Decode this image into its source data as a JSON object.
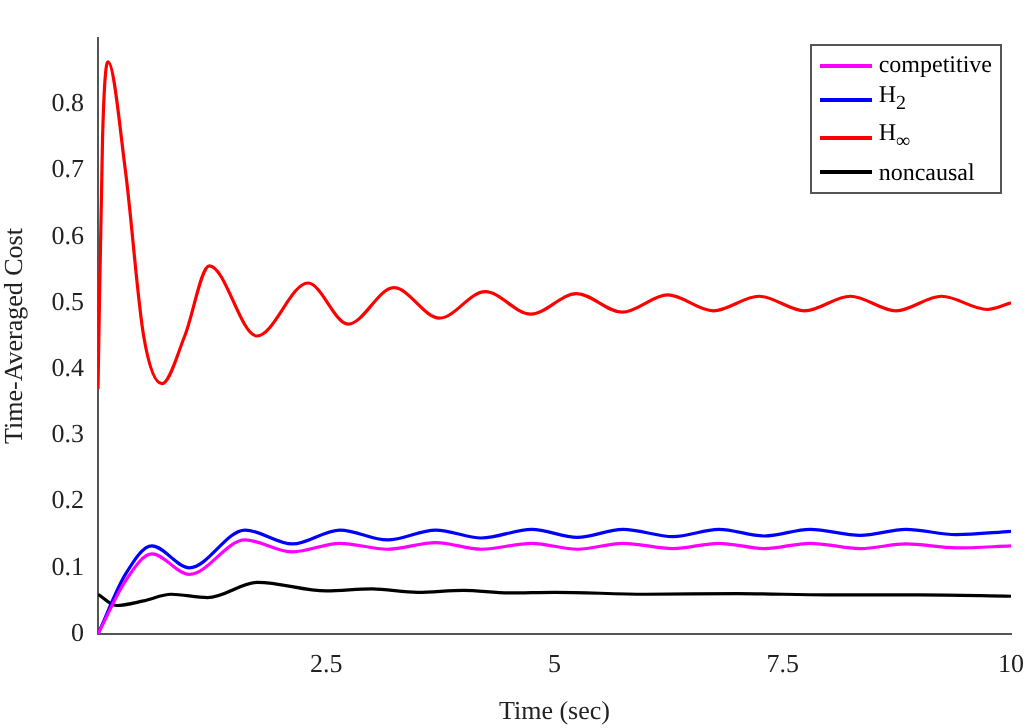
{
  "chart_data": {
    "type": "line",
    "xlabel": "Time (sec)",
    "ylabel": "Time-Averaged Cost",
    "xlim": [
      0,
      10
    ],
    "ylim": [
      0,
      0.9
    ],
    "xticks": [
      2.5,
      5,
      7.5,
      10
    ],
    "yticks": [
      0,
      0.1,
      0.2,
      0.3,
      0.4,
      0.5,
      0.6,
      0.7,
      0.8
    ],
    "grid": false,
    "legend": "top right",
    "marker": "none",
    "line_style": "solid",
    "series": [
      {
        "name": "competitive",
        "color": "#ff00ff",
        "x": [
          0,
          0.3,
          0.59,
          1.0,
          1.61,
          2.13,
          2.65,
          3.17,
          3.7,
          4.2,
          4.75,
          5.25,
          5.75,
          6.3,
          6.8,
          7.3,
          7.8,
          8.35,
          8.85,
          9.4,
          10
        ],
        "values": [
          0,
          0.08,
          0.121,
          0.09,
          0.142,
          0.124,
          0.137,
          0.128,
          0.138,
          0.128,
          0.137,
          0.128,
          0.137,
          0.129,
          0.137,
          0.129,
          0.137,
          0.129,
          0.136,
          0.13,
          0.133
        ]
      },
      {
        "name": "H$_{2}$",
        "color": "#0000ff",
        "x": [
          0,
          0.3,
          0.59,
          1.0,
          1.61,
          2.13,
          2.65,
          3.17,
          3.7,
          4.2,
          4.75,
          5.25,
          5.75,
          6.3,
          6.8,
          7.3,
          7.8,
          8.35,
          8.85,
          9.4,
          10
        ],
        "values": [
          0,
          0.09,
          0.133,
          0.1,
          0.157,
          0.136,
          0.157,
          0.142,
          0.157,
          0.145,
          0.158,
          0.146,
          0.158,
          0.147,
          0.158,
          0.148,
          0.158,
          0.149,
          0.158,
          0.15,
          0.155
        ]
      },
      {
        "name": "H$_{∞}$",
        "color": "#ff0000",
        "x": [
          0,
          0.05,
          0.11,
          0.3,
          0.5,
          0.7,
          0.95,
          1.22,
          1.74,
          2.3,
          2.74,
          3.24,
          3.74,
          4.24,
          4.74,
          5.24,
          5.74,
          6.24,
          6.74,
          7.24,
          7.74,
          8.24,
          8.74,
          9.24,
          9.74,
          10
        ],
        "values": [
          0.37,
          0.75,
          0.864,
          0.7,
          0.45,
          0.378,
          0.45,
          0.556,
          0.45,
          0.53,
          0.468,
          0.523,
          0.477,
          0.517,
          0.483,
          0.514,
          0.486,
          0.512,
          0.488,
          0.51,
          0.488,
          0.51,
          0.488,
          0.51,
          0.49,
          0.5
        ]
      },
      {
        "name": "noncausal",
        "color": "#000000",
        "x": [
          0,
          0.2,
          0.5,
          0.8,
          1.2,
          1.75,
          2.5,
          3.0,
          3.5,
          4.0,
          4.5,
          5.0,
          6.0,
          7.0,
          8.0,
          9.0,
          10
        ],
        "values": [
          0.06,
          0.043,
          0.05,
          0.06,
          0.055,
          0.078,
          0.065,
          0.068,
          0.063,
          0.066,
          0.062,
          0.063,
          0.06,
          0.061,
          0.059,
          0.059,
          0.057
        ]
      }
    ]
  }
}
